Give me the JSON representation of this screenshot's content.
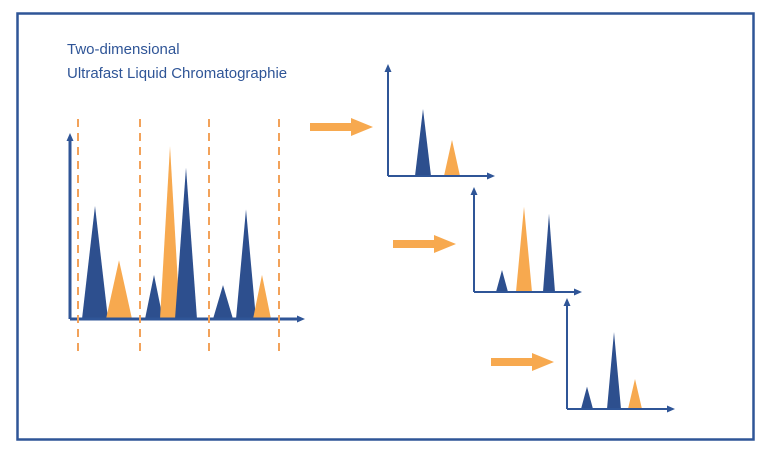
{
  "title": {
    "line1": "Two-dimensional",
    "line2": "Ultrafast Liquid Chromatographie"
  },
  "colors": {
    "frame": "#2f5597",
    "axis": "#2f5597",
    "peak_dark": "#2d4f8e",
    "peak_light": "#f7a94f",
    "divider": "#f2a25a",
    "arrow": "#f7a94f",
    "title_text": "#2f5597"
  },
  "first_dimension": {
    "fraction_count": 3,
    "peaks": [
      {
        "fraction": 1,
        "color": "dark",
        "height": 1.0
      },
      {
        "fraction": 1,
        "color": "light",
        "height": 0.52
      },
      {
        "fraction": 2,
        "color": "dark",
        "height": 0.39
      },
      {
        "fraction": 2,
        "color": "light",
        "height": 1.53
      },
      {
        "fraction": 2,
        "color": "dark",
        "height": 1.34
      },
      {
        "fraction": 3,
        "color": "dark",
        "height": 0.3
      },
      {
        "fraction": 3,
        "color": "dark",
        "height": 0.97
      },
      {
        "fraction": 3,
        "color": "light",
        "height": 0.39
      }
    ]
  },
  "second_dimension": [
    {
      "fraction": 1,
      "peaks": [
        {
          "color": "dark",
          "height": 1.0
        },
        {
          "color": "light",
          "height": 0.54
        }
      ]
    },
    {
      "fraction": 2,
      "peaks": [
        {
          "color": "dark",
          "height": 0.31
        },
        {
          "color": "light",
          "height": 1.2
        },
        {
          "color": "dark",
          "height": 1.1
        }
      ]
    },
    {
      "fraction": 3,
      "peaks": [
        {
          "color": "dark",
          "height": 0.29
        },
        {
          "color": "dark",
          "height": 1.0
        },
        {
          "color": "light",
          "height": 0.39
        }
      ]
    }
  ]
}
